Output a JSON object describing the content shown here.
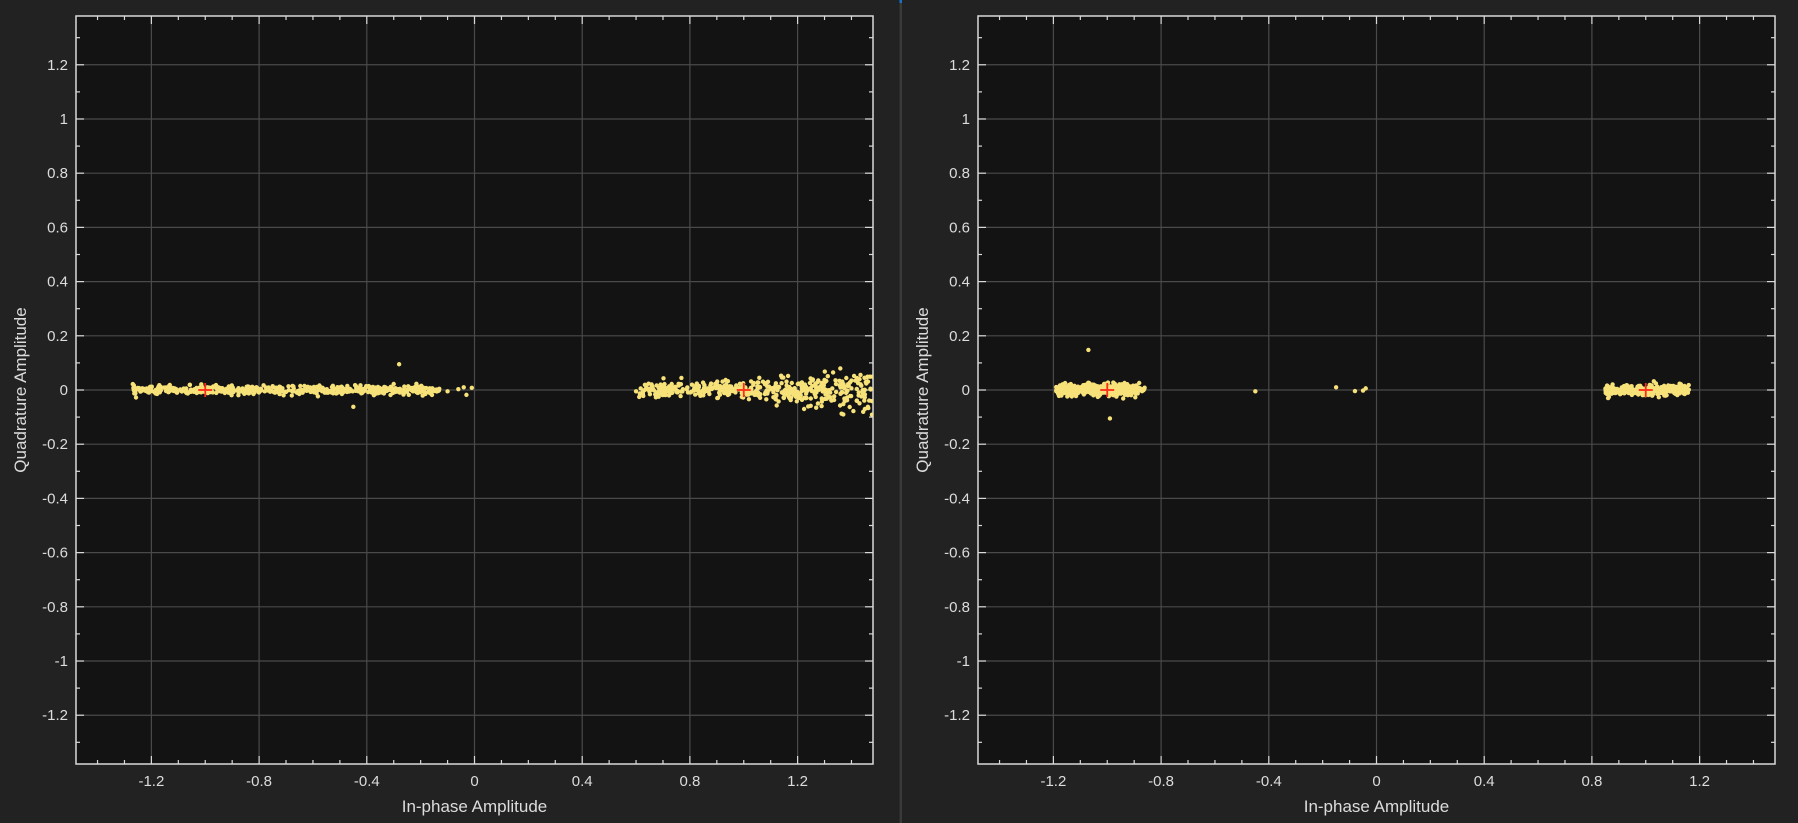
{
  "colors": {
    "background": "#222222",
    "plot_area": "#131313",
    "grid": "#4a4a4a",
    "axis": "#d9d9d9",
    "symbols": "#f7e27a",
    "reference": "#ff2a1a"
  },
  "chart_data": [
    {
      "type": "scatter",
      "title": "",
      "xlabel": "In-phase Amplitude",
      "ylabel": "Quadrature Amplitude",
      "xlim": [
        -1.48,
        1.48
      ],
      "ylim": [
        -1.38,
        1.38
      ],
      "xticks": [
        -1.2,
        -0.8,
        -0.4,
        0,
        0.4,
        0.8,
        1.2
      ],
      "xtick_labels": [
        "-1.2",
        "-0.8",
        "-0.4",
        "0",
        "0.4",
        "0.8",
        "1.2"
      ],
      "yticks": [
        1.2,
        1,
        0.8,
        0.6,
        0.4,
        0.2,
        0,
        -0.2,
        -0.4,
        -0.6,
        -0.8,
        -1,
        -1.2
      ],
      "ytick_labels": [
        "1.2",
        "1",
        "0.8",
        "0.6",
        "0.4",
        "0.2",
        "0",
        "-0.2",
        "-0.4",
        "-0.6",
        "-0.8",
        "-1",
        "-1.2"
      ],
      "grid": true,
      "reference_points": [
        {
          "x": -1,
          "y": 0
        },
        {
          "x": 1,
          "y": 0
        }
      ],
      "clusters": [
        {
          "x_min": -1.27,
          "x_max": -0.13,
          "y_spread": 0.008,
          "count": 520
        },
        {
          "x_min": 0.61,
          "x_max": 1.48,
          "y_spread": 0.014,
          "count": 480,
          "y_spread_growth": 0.03
        }
      ],
      "outliers": [
        {
          "x": -0.28,
          "y": 0.095
        },
        {
          "x": -0.45,
          "y": -0.062
        },
        {
          "x": -0.1,
          "y": -0.005
        },
        {
          "x": -0.06,
          "y": 0.003
        },
        {
          "x": -0.04,
          "y": 0.01
        },
        {
          "x": -0.03,
          "y": -0.018
        },
        {
          "x": -0.01,
          "y": 0.008
        },
        {
          "x": 0.6,
          "y": -0.005
        },
        {
          "x": 1.42,
          "y": -0.04
        },
        {
          "x": 1.45,
          "y": -0.07
        },
        {
          "x": 1.4,
          "y": 0.035
        }
      ]
    },
    {
      "type": "scatter",
      "title": "",
      "xlabel": "In-phase Amplitude",
      "ylabel": "Quadrature Amplitude",
      "xlim": [
        -1.48,
        1.48
      ],
      "ylim": [
        -1.38,
        1.38
      ],
      "xticks": [
        -1.2,
        -0.8,
        -0.4,
        0,
        0.4,
        0.8,
        1.2
      ],
      "xtick_labels": [
        "-1.2",
        "-0.8",
        "-0.4",
        "0",
        "0.4",
        "0.8",
        "1.2"
      ],
      "yticks": [
        1.2,
        1,
        0.8,
        0.6,
        0.4,
        0.2,
        0,
        -0.2,
        -0.4,
        -0.6,
        -0.8,
        -1,
        -1.2
      ],
      "ytick_labels": [
        "1.2",
        "1",
        "0.8",
        "0.6",
        "0.4",
        "0.2",
        "0",
        "-0.2",
        "-0.4",
        "-0.6",
        "-0.8",
        "-1",
        "-1.2"
      ],
      "grid": true,
      "reference_points": [
        {
          "x": -1,
          "y": 0
        },
        {
          "x": 1,
          "y": 0
        }
      ],
      "clusters": [
        {
          "x_min": -1.19,
          "x_max": -0.88,
          "y_spread": 0.012,
          "count": 300
        },
        {
          "x_min": -1.19,
          "x_max": -0.86,
          "y_spread": 0.006,
          "count": 80
        },
        {
          "x_min": 0.85,
          "x_max": 1.16,
          "y_spread": 0.009,
          "count": 300
        }
      ],
      "outliers": [
        {
          "x": -1.07,
          "y": 0.148
        },
        {
          "x": -0.99,
          "y": -0.105
        },
        {
          "x": -0.45,
          "y": -0.005
        },
        {
          "x": -0.15,
          "y": 0.01
        },
        {
          "x": -0.08,
          "y": -0.004
        },
        {
          "x": -0.05,
          "y": -0.002
        },
        {
          "x": -0.04,
          "y": 0.006
        },
        {
          "x": 1.03,
          "y": 0.032
        }
      ]
    }
  ]
}
